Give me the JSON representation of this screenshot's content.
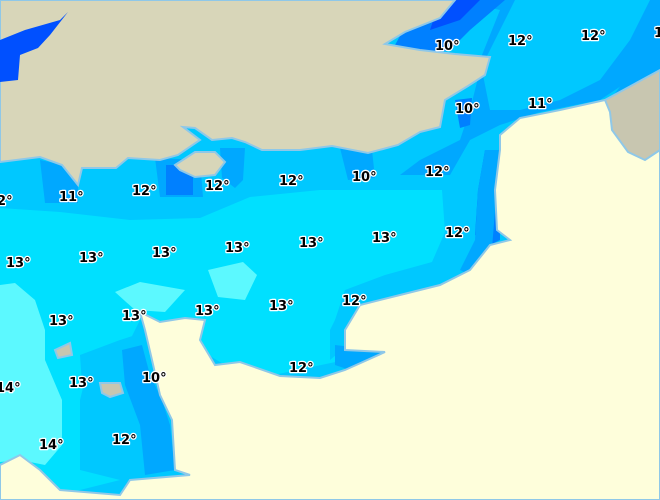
{
  "map": {
    "type": "sea-surface-temperature",
    "unit": "°C",
    "colors": {
      "temp_10": "#0080ff",
      "temp_10_dark": "#0050ff",
      "temp_11": "#00a8ff",
      "temp_12": "#00c8ff",
      "temp_13": "#00e0ff",
      "temp_14": "#5cf9ff",
      "land_england": "#d8d6b9",
      "land_france": "#fefedb",
      "land_belgium": "#c8c6b0"
    },
    "labels": [
      "12°",
      "11°",
      "12°",
      "12°",
      "12°",
      "10°",
      "12°",
      "10°",
      "12°",
      "12°",
      "1",
      "10°",
      "11°",
      "12°",
      "13°",
      "13°",
      "13°",
      "13°",
      "13°",
      "13°",
      "13°",
      "13°",
      "13°",
      "13°",
      "12°",
      "12°",
      "10°",
      "13°",
      "14°",
      "14°",
      "12°"
    ]
  }
}
